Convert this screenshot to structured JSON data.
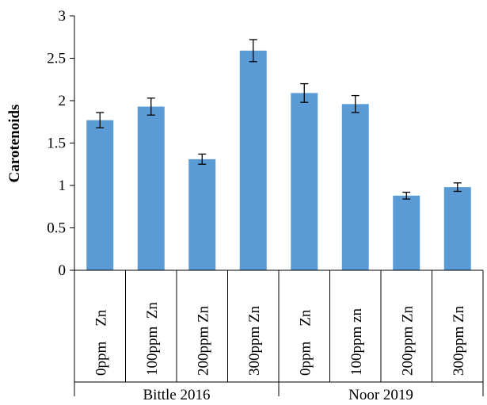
{
  "chart_data": {
    "type": "bar",
    "title": "",
    "xlabel": "",
    "ylabel": "Carotenoids",
    "ylim": [
      0,
      3
    ],
    "yticks": [
      "0",
      "0.5",
      "1",
      "1.5",
      "2",
      "2.5",
      "3"
    ],
    "grid": false,
    "legend": "none",
    "bar_color": "#5b9bd5",
    "categories": [
      "0ppm    Zn",
      "100ppm  Zn",
      "200ppm Zn",
      "300ppm Zn",
      "0ppm    Zn",
      "100ppm zn",
      "200ppm Zn",
      "300ppm Zn"
    ],
    "groups": [
      {
        "label": "Bittle 2016",
        "count": 4
      },
      {
        "label": "Noor 2019",
        "count": 4
      }
    ],
    "values": [
      1.77,
      1.93,
      1.31,
      2.59,
      2.09,
      1.96,
      0.88,
      0.98
    ],
    "errors": [
      0.09,
      0.1,
      0.06,
      0.13,
      0.11,
      0.1,
      0.04,
      0.05
    ]
  }
}
